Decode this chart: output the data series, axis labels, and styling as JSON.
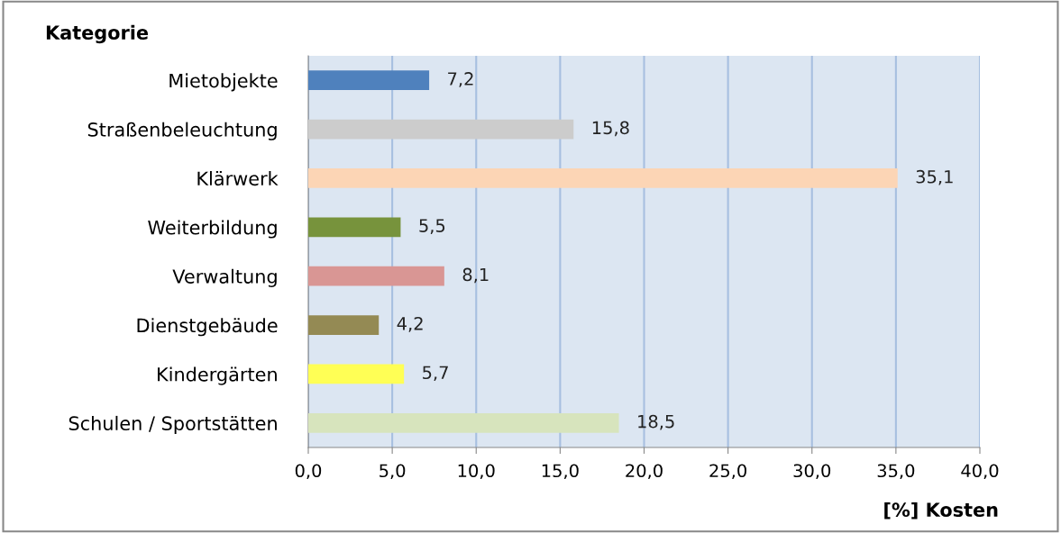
{
  "chart_data": {
    "type": "bar",
    "orientation": "horizontal",
    "ylabel": "Kategorie",
    "xlabel": "[%] Kosten",
    "categories": [
      "Mietobjekte",
      "Straßenbeleuchtung",
      "Klärwerk",
      "Weiterbildung",
      "Verwaltung",
      "Dienstgebäude",
      "Kindergärten",
      "Schulen / Sportstätten"
    ],
    "values": [
      7.2,
      15.8,
      35.1,
      5.5,
      8.1,
      4.2,
      5.7,
      18.5
    ],
    "colors": [
      "#4f81bd",
      "#cccccc",
      "#fcd5b5",
      "#77933c",
      "#d99694",
      "#948a54",
      "#ffff55",
      "#d7e4bd"
    ],
    "value_labels": [
      "7,2",
      "15,8",
      "35,1",
      "5,5",
      "8,1",
      "4,2",
      "5,7",
      "18,5"
    ],
    "xlim": [
      0,
      40
    ],
    "xticks": [
      {
        "value": 0,
        "label": "0,0"
      },
      {
        "value": 5,
        "label": "5,0"
      },
      {
        "value": 10,
        "label": "10,0"
      },
      {
        "value": 15,
        "label": "15,0"
      },
      {
        "value": 20,
        "label": "20,0"
      },
      {
        "value": 25,
        "label": "25,0"
      },
      {
        "value": 30,
        "label": "30,0"
      },
      {
        "value": 35,
        "label": "35,0"
      },
      {
        "value": 40,
        "label": "40,0"
      }
    ],
    "grid": "x"
  }
}
